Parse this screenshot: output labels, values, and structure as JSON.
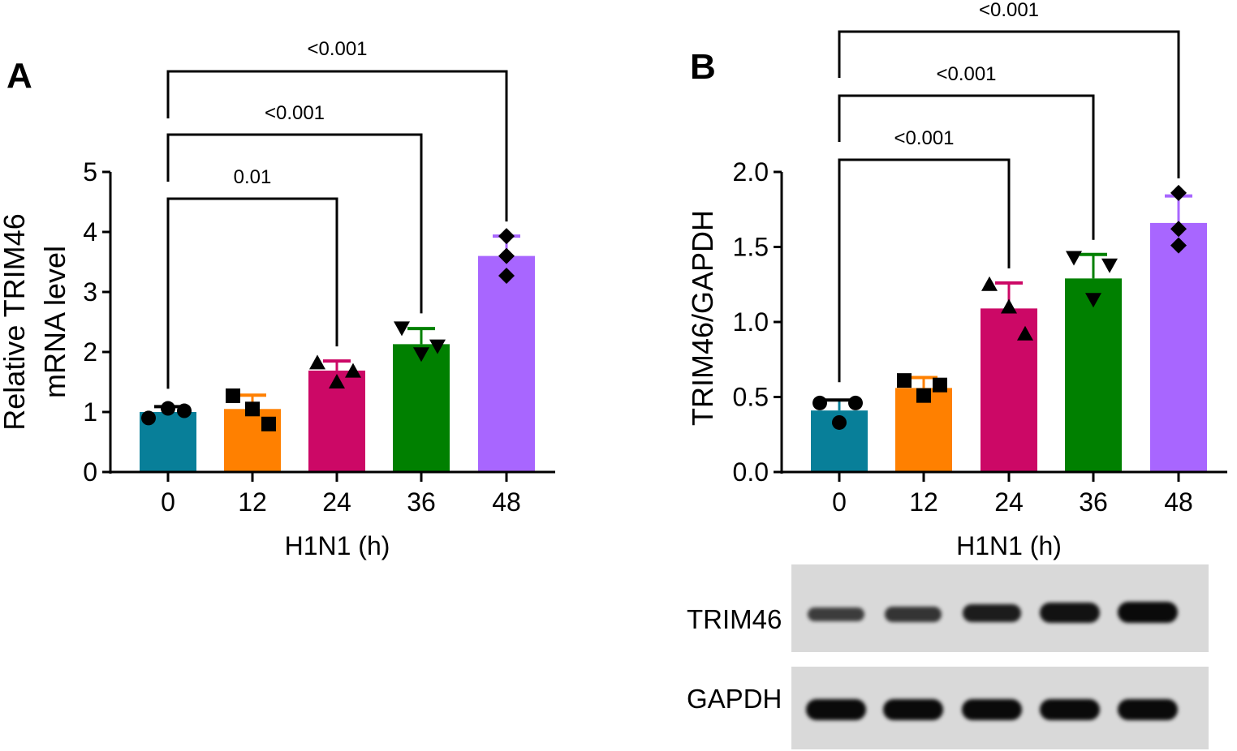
{
  "chart_data": [
    {
      "panel": "A",
      "type": "bar",
      "title": "",
      "xlabel": "H1N1 (h)",
      "ylabel": "Relative TRIM46 mRNA level",
      "categories": [
        "0",
        "12",
        "24",
        "36",
        "48"
      ],
      "values": [
        1.0,
        1.05,
        1.69,
        2.13,
        3.6
      ],
      "error_upper": [
        1.09,
        1.28,
        1.85,
        2.39,
        3.93
      ],
      "points": [
        [
          0.9,
          1.06,
          1.02
        ],
        [
          1.27,
          1.05,
          0.8
        ],
        [
          1.82,
          1.5,
          1.68
        ],
        [
          2.4,
          1.97,
          2.1
        ],
        [
          3.93,
          3.6,
          3.27
        ]
      ],
      "markers": [
        "circle",
        "square",
        "triangle-up",
        "triangle-down",
        "diamond"
      ],
      "colors": [
        "#087f99",
        "#ff8000",
        "#cc0866",
        "#008000",
        "#a866ff"
      ],
      "ylim": [
        0,
        5
      ],
      "yticks": [
        "0",
        "1",
        "2",
        "3",
        "4",
        "5"
      ],
      "significance": [
        {
          "from": "0",
          "to": "24",
          "label": "0.01"
        },
        {
          "from": "0",
          "to": "36",
          "label": "<0.001"
        },
        {
          "from": "0",
          "to": "48",
          "label": "<0.001"
        }
      ]
    },
    {
      "panel": "B",
      "type": "bar",
      "title": "",
      "xlabel": "H1N1 (h)",
      "ylabel": "TRIM46/GAPDH",
      "categories": [
        "0",
        "12",
        "24",
        "36",
        "48"
      ],
      "values": [
        0.41,
        0.56,
        1.09,
        1.29,
        1.66
      ],
      "error_upper": [
        0.48,
        0.63,
        1.26,
        1.45,
        1.84
      ],
      "points": [
        [
          0.46,
          0.33,
          0.46
        ],
        [
          0.61,
          0.51,
          0.58
        ],
        [
          1.25,
          1.1,
          0.92
        ],
        [
          1.43,
          1.15,
          1.38
        ],
        [
          1.86,
          1.62,
          1.51
        ]
      ],
      "markers": [
        "circle",
        "square",
        "triangle-up",
        "triangle-down",
        "diamond"
      ],
      "colors": [
        "#087f99",
        "#ff8000",
        "#cc0866",
        "#008000",
        "#a866ff"
      ],
      "ylim": [
        0,
        2.0
      ],
      "yticks": [
        "0.0",
        "0.5",
        "1.0",
        "1.5",
        "2.0"
      ],
      "significance": [
        {
          "from": "0",
          "to": "24",
          "label": "<0.001"
        },
        {
          "from": "0",
          "to": "36",
          "label": "<0.001"
        },
        {
          "from": "0",
          "to": "48",
          "label": "<0.001"
        }
      ]
    }
  ],
  "panels": {
    "a": {
      "letter": "A",
      "ylabel_line1": "Relative TRIM46",
      "ylabel_line2": "mRNA level",
      "xlabel": "H1N1 (h)"
    },
    "b": {
      "letter": "B",
      "ylabel": "TRIM46/GAPDH",
      "xlabel": "H1N1 (h)"
    }
  },
  "blot": {
    "rows": [
      {
        "label": "TRIM46",
        "band_intensity": [
          0.45,
          0.55,
          0.8,
          0.9,
          1.0
        ]
      },
      {
        "label": "GAPDH",
        "band_intensity": [
          1.0,
          1.0,
          1.0,
          1.0,
          1.0
        ]
      }
    ]
  }
}
